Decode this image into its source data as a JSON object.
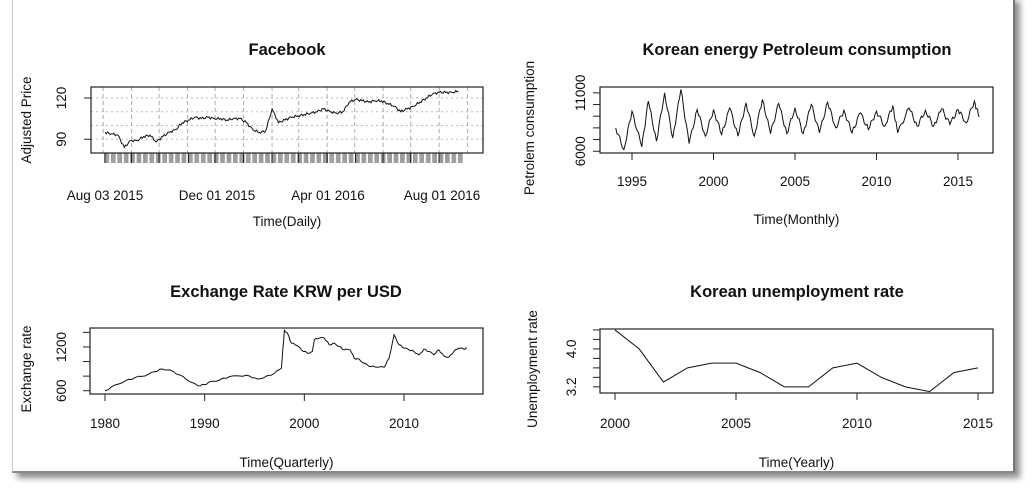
{
  "chart_data": [
    {
      "id": "facebook",
      "type": "line",
      "title": "Facebook",
      "xlabel": "Time(Daily)",
      "ylabel": "Adjusted Price",
      "x_tick_labels": [
        "Aug 03 2015",
        "Dec 01 2015",
        "Apr 01 2016",
        "Aug 01 2016"
      ],
      "y_ticks": [
        90,
        120
      ],
      "y_tick_labels": [
        "90",
        "120"
      ],
      "ylim": [
        80,
        128
      ],
      "grid": true,
      "x_start": "2015-08-03",
      "x_step_days": 7,
      "values": [
        95,
        94,
        93,
        84,
        89,
        89,
        92,
        93,
        88,
        92,
        95,
        97,
        102,
        104,
        106,
        105,
        106,
        105,
        105,
        104,
        105,
        105,
        102,
        97,
        95,
        96,
        112,
        102,
        104,
        106,
        107,
        108,
        109,
        110,
        112,
        110,
        109,
        110,
        117,
        119,
        118,
        117,
        118,
        118,
        116,
        114,
        110,
        112,
        114,
        117,
        120,
        123,
        124,
        124,
        124,
        125
      ]
    },
    {
      "id": "petroleum",
      "type": "line",
      "title": "Korean energy Petroleum consumption",
      "xlabel": "Time(Monthly)",
      "ylabel": "Petrolem consumption",
      "x_ticks": [
        1995,
        2000,
        2005,
        2010,
        2015
      ],
      "x_tick_labels": [
        "1995",
        "2000",
        "2005",
        "2010",
        "2015"
      ],
      "y_ticks": [
        6000,
        7000,
        8000,
        9000,
        10000,
        11000
      ],
      "y_tick_labels": [
        "6000",
        "11000"
      ],
      "ylim": [
        5850,
        11500
      ],
      "x": [
        1994.0,
        1994.5,
        1995.0,
        1995.6,
        1996.0,
        1996.5,
        1997.0,
        1997.5,
        1998.0,
        1998.5,
        1999.0,
        1999.5,
        2000.0,
        2000.5,
        2001.0,
        2001.5,
        2002.0,
        2002.5,
        2003.0,
        2003.5,
        2004.0,
        2004.5,
        2005.0,
        2005.5,
        2006.0,
        2006.5,
        2007.0,
        2007.5,
        2008.0,
        2008.5,
        2009.0,
        2009.5,
        2010.0,
        2010.5,
        2011.0,
        2011.3,
        2012.0,
        2012.5,
        2013.0,
        2013.5,
        2014.0,
        2014.5,
        2015.0,
        2015.5,
        2016.0,
        2016.3
      ],
      "values": [
        8000,
        6140,
        9430,
        6370,
        10290,
        6860,
        11000,
        7140,
        11290,
        6660,
        9570,
        7290,
        9570,
        7430,
        9710,
        7290,
        10140,
        7290,
        10430,
        7510,
        10090,
        7510,
        9710,
        7510,
        10000,
        7570,
        10200,
        8000,
        9510,
        7570,
        9290,
        7860,
        9430,
        8140,
        9860,
        7570,
        9710,
        8140,
        9510,
        8140,
        9630,
        8290,
        9570,
        8430,
        10290,
        8940
      ]
    },
    {
      "id": "exchange",
      "type": "line",
      "title": "Exchange Rate KRW per USD",
      "xlabel": "Time(Quarterly)",
      "ylabel": "Exchange rate",
      "x_ticks": [
        1980,
        1990,
        2000,
        2010
      ],
      "x_tick_labels": [
        "1980",
        "1990",
        "2000",
        "2010"
      ],
      "y_ticks": [
        600,
        800,
        1000,
        1200,
        1400
      ],
      "y_tick_labels": [
        "600",
        "1200"
      ],
      "ylim": [
        555,
        1460
      ],
      "x": [
        1980.0,
        1981,
        1982,
        1983,
        1984,
        1985,
        1985.7,
        1986.5,
        1987.5,
        1988.5,
        1989.3,
        1990,
        1990.5,
        1991.5,
        1992.5,
        1993.5,
        1994.5,
        1995.3,
        1996,
        1997,
        1997.7,
        1997.9,
        1998.0,
        1998.3,
        1998.7,
        1999.3,
        1999.7,
        2000.3,
        2000.8,
        2001.0,
        2001.5,
        2002.0,
        2002.5,
        2003.0,
        2003.5,
        2004,
        2004.6,
        2005,
        2005.5,
        2006,
        2006.7,
        2007.3,
        2008.0,
        2008.5,
        2009.0,
        2009.5,
        2010.0,
        2010.5,
        2011,
        2011.5,
        2012,
        2012.5,
        2013,
        2013.5,
        2014,
        2014.5,
        2015,
        2015.5,
        2016,
        2016.3
      ],
      "values": [
        600,
        678,
        733,
        779,
        802,
        862,
        899,
        885,
        816,
        724,
        669,
        683,
        724,
        747,
        793,
        802,
        802,
        761,
        784,
        839,
        908,
        1253,
        1428,
        1391,
        1253,
        1216,
        1161,
        1115,
        1138,
        1299,
        1322,
        1322,
        1230,
        1253,
        1207,
        1161,
        1161,
        1046,
        1032,
        977,
        931,
        922,
        922,
        1046,
        1368,
        1230,
        1184,
        1161,
        1138,
        1092,
        1170,
        1138,
        1092,
        1161,
        1078,
        1060,
        1138,
        1184,
        1170,
        1184
      ]
    },
    {
      "id": "unemployment",
      "type": "line",
      "title": "Korean unemployment rate",
      "xlabel": "Time(Yearly)",
      "ylabel": "Unemployment rate",
      "x_ticks": [
        2000,
        2005,
        2010,
        2015
      ],
      "x_tick_labels": [
        "2000",
        "2005",
        "2010",
        "2015"
      ],
      "y_ticks": [
        3.2,
        3.4,
        3.6,
        3.8,
        4.0,
        4.2,
        4.4
      ],
      "y_tick_labels": [
        "3.2",
        "4.0"
      ],
      "ylim": [
        3.07,
        4.42
      ],
      "x": [
        2000,
        2001,
        2002,
        2003,
        2004,
        2005,
        2006,
        2007,
        2008,
        2009,
        2010,
        2011,
        2012,
        2013,
        2014,
        2015
      ],
      "values": [
        4.4,
        4.0,
        3.3,
        3.6,
        3.7,
        3.7,
        3.5,
        3.2,
        3.2,
        3.6,
        3.7,
        3.4,
        3.2,
        3.1,
        3.5,
        3.6
      ]
    }
  ]
}
